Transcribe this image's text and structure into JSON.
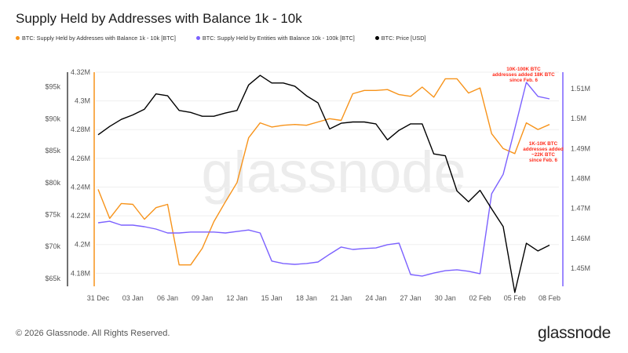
{
  "footer": {
    "copyright": "© 2026 Glassnode. All Rights Reserved.",
    "logo": "glassnode",
    "watermark": "glassnode"
  },
  "chart_data": {
    "type": "line",
    "title": "Supply Held by Addresses with Balance 1k - 10k",
    "x": [
      "31 Dec",
      "01 Jan",
      "02 Jan",
      "03 Jan",
      "04 Jan",
      "05 Jan",
      "06 Jan",
      "07 Jan",
      "08 Jan",
      "09 Jan",
      "10 Jan",
      "11 Jan",
      "12 Jan",
      "13 Jan",
      "14 Jan",
      "15 Jan",
      "16 Jan",
      "17 Jan",
      "18 Jan",
      "19 Jan",
      "20 Jan",
      "21 Jan",
      "22 Jan",
      "23 Jan",
      "24 Jan",
      "25 Jan",
      "26 Jan",
      "27 Jan",
      "28 Jan",
      "29 Jan",
      "30 Jan",
      "31 Jan",
      "01 Feb",
      "02 Feb",
      "03 Feb",
      "04 Feb",
      "05 Feb",
      "06 Feb",
      "07 Feb",
      "08 Feb"
    ],
    "x_tick_labels": [
      "31 Dec",
      "03 Jan",
      "06 Jan",
      "09 Jan",
      "12 Jan",
      "15 Jan",
      "18 Jan",
      "21 Jan",
      "24 Jan",
      "27 Jan",
      "30 Jan",
      "02 Feb",
      "05 Feb",
      "08 Feb"
    ],
    "legend_position": "top-left",
    "grid": true,
    "axes": {
      "price": {
        "ticks": [
          "$95k",
          "$90k",
          "$85k",
          "$80k",
          "$75k",
          "$70k",
          "$65k"
        ],
        "tick_values": [
          95000,
          90000,
          85000,
          80000,
          75000,
          70000,
          65000
        ],
        "range": [
          64000,
          97300
        ],
        "side": "left-outer"
      },
      "supply_1k_10k": {
        "ticks": [
          "4.32M",
          "4.3M",
          "4.28M",
          "4.26M",
          "4.24M",
          "4.22M",
          "4.2M",
          "4.18M"
        ],
        "tick_values": [
          4.32,
          4.3,
          4.28,
          4.26,
          4.24,
          4.22,
          4.2,
          4.18
        ],
        "range": [
          4.172,
          4.32
        ],
        "side": "left-inner",
        "color": "#f7931a"
      },
      "supply_10k_100k": {
        "ticks": [
          "1.51M",
          "1.5M",
          "1.49M",
          "1.48M",
          "1.47M",
          "1.46M",
          "1.45M"
        ],
        "tick_values": [
          1.51,
          1.5,
          1.49,
          1.48,
          1.47,
          1.46,
          1.45
        ],
        "range": [
          1.4445,
          1.5155
        ],
        "side": "right",
        "color": "#7b61ff"
      }
    },
    "series": [
      {
        "name": "BTC: Supply Held by Addresses with Balance 1k - 10k [BTC]",
        "axis": "supply_1k_10k",
        "color": "#f7931a",
        "unit": "M BTC",
        "values": [
          4.2384,
          4.2182,
          4.2286,
          4.228,
          4.2176,
          4.2257,
          4.228,
          4.1858,
          4.1858,
          4.1974,
          4.2159,
          4.2298,
          4.2431,
          4.2743,
          4.2847,
          4.2818,
          4.283,
          4.2836,
          4.283,
          4.2853,
          4.2876,
          4.2864,
          4.305,
          4.3073,
          4.3073,
          4.3079,
          4.3044,
          4.3032,
          4.3096,
          4.3026,
          4.3154,
          4.3154,
          4.3055,
          4.309,
          4.2772,
          4.2668,
          4.2633,
          4.2847,
          4.2801,
          4.2836
        ]
      },
      {
        "name": "BTC: Supply Held by Entities with Balance 10k - 100k [BTC]",
        "axis": "supply_10k_100k",
        "color": "#7b61ff",
        "unit": "M BTC",
        "values": [
          1.4652,
          1.4657,
          1.4644,
          1.4644,
          1.4639,
          1.4631,
          1.4618,
          1.4618,
          1.4621,
          1.4621,
          1.4621,
          1.4618,
          1.4623,
          1.4628,
          1.4618,
          1.4524,
          1.4516,
          1.4513,
          1.4516,
          1.4521,
          1.4547,
          1.4571,
          1.4563,
          1.4566,
          1.4568,
          1.4579,
          1.4584,
          1.4479,
          1.4474,
          1.4484,
          1.4492,
          1.4495,
          1.449,
          1.4482,
          1.4749,
          1.4814,
          1.4966,
          1.5121,
          1.5074,
          1.5066
        ]
      },
      {
        "name": "BTC: Price [USD]",
        "axis": "price",
        "color": "#000000",
        "unit": "USD",
        "values": [
          87500,
          88800,
          89900,
          90600,
          91500,
          93900,
          93600,
          91300,
          91000,
          90400,
          90400,
          90900,
          91300,
          95300,
          96800,
          95600,
          95600,
          95100,
          93600,
          92500,
          88400,
          89300,
          89500,
          89500,
          89200,
          86700,
          88200,
          89200,
          89200,
          84500,
          84200,
          78700,
          77000,
          78800,
          75900,
          73100,
          62800,
          70500,
          69300,
          70200
        ]
      }
    ],
    "annotations": [
      {
        "lines": [
          "10K-100K BTC",
          "addresses added 18K BTC",
          "since Feb. 6"
        ],
        "color": "#ff2a1a"
      },
      {
        "lines": [
          "1K-10K BTC",
          "addresses added",
          "~22K BTC",
          "since Feb. 6"
        ],
        "color": "#ff2a1a"
      }
    ]
  }
}
